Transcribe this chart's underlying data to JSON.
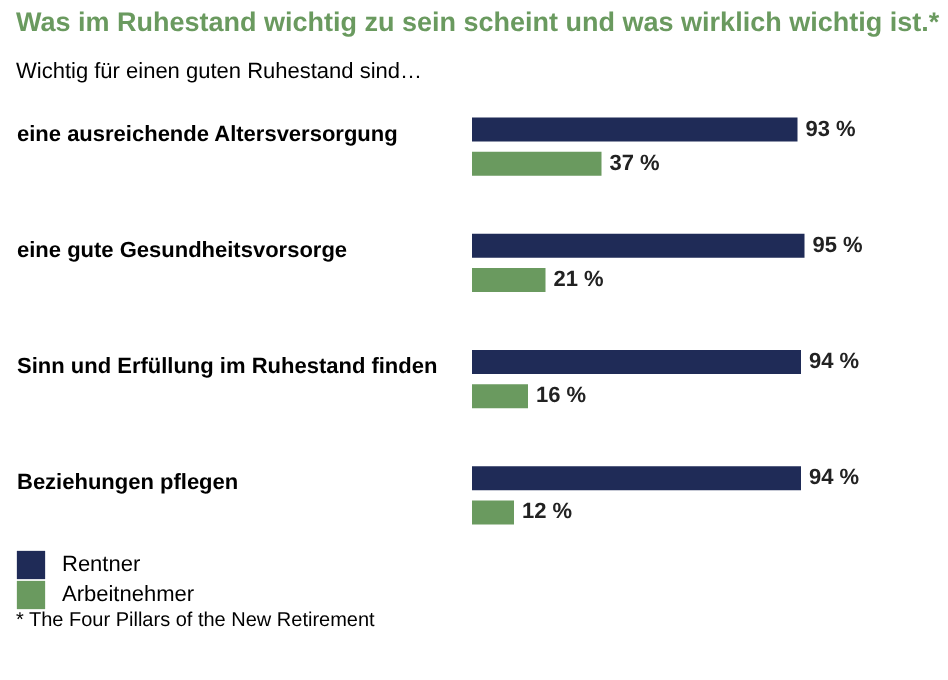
{
  "chart_data": {
    "type": "bar",
    "orientation": "horizontal",
    "title": "Was im Ruhestand wichtig zu sein scheint und was wirklich wichtig ist.*",
    "subtitle": "Wichtig für einen guten Ruhestand sind…",
    "categories": [
      "eine ausreichende Altersversorgung",
      "eine gute Gesundheitsvorsorge",
      "Sinn und Erfüllung im Ruhestand finden",
      "Beziehungen pflegen"
    ],
    "series": [
      {
        "name": "Rentner",
        "color": "#1f2b57",
        "values": [
          93,
          95,
          94,
          94
        ],
        "value_labels": [
          "93 %",
          "95 %",
          "94 %",
          "94 %"
        ]
      },
      {
        "name": "Arbeitnehmer",
        "color": "#6a9a5f",
        "values": [
          37,
          21,
          16,
          12
        ],
        "value_labels": [
          "37 %",
          "21 %",
          "16 %",
          "12 %"
        ]
      }
    ],
    "legend": "bottom left",
    "annotations": [
      "* The Four Pillars of the New Retirement"
    ]
  }
}
